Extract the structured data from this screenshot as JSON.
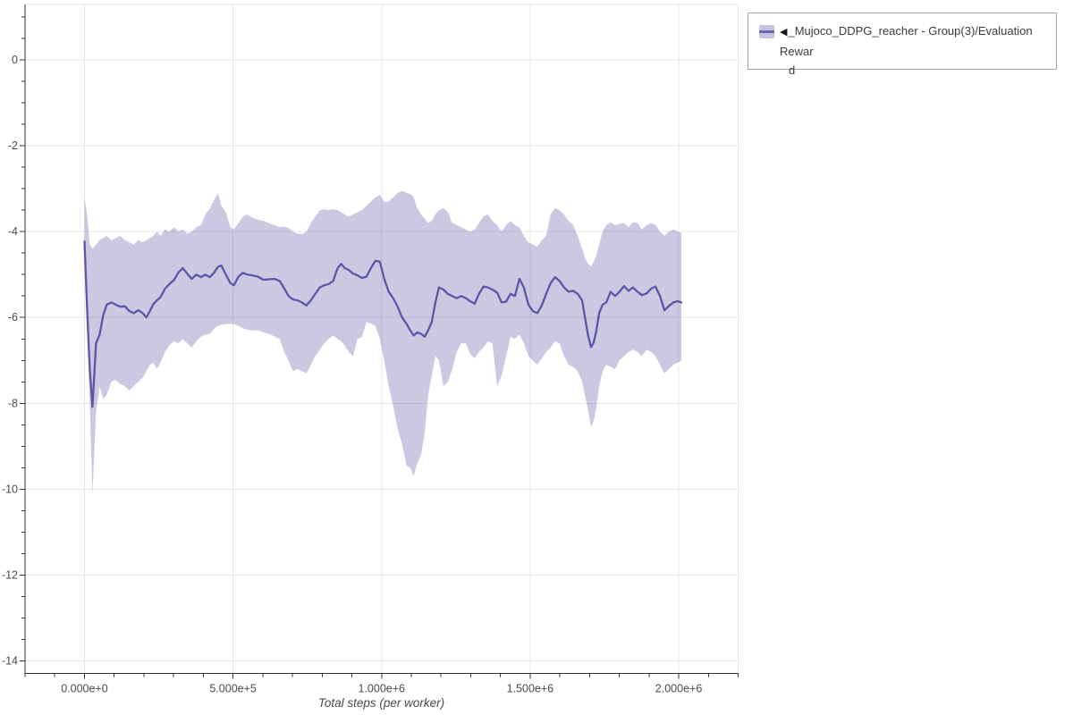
{
  "legend": {
    "collapse_icon": "◀",
    "label_full": "_Mujoco_DDPG_reacher - Group(3)/Evaluation Reward",
    "label_line1": "_Mujoco_DDPG_reacher - Group(3)/Evaluation Rewar",
    "label_line2": "d"
  },
  "colors": {
    "line": "#5e55a6",
    "band_fill": "#5e55a6",
    "grid": "#e7e7e7",
    "axis": "#333333",
    "tick_label": "#4a4a4a",
    "legend_border": "#a3a3a3"
  },
  "chart_data": {
    "type": "line",
    "title": "",
    "xlabel": "Total steps (per worker)",
    "ylabel": "",
    "grid": "major",
    "legend_position": "outside-top-right",
    "xlim": [
      -200000,
      2200000
    ],
    "ylim": [
      -14.29,
      1.29
    ],
    "x_major_ticks": [
      0,
      500000,
      1000000,
      1500000,
      2000000
    ],
    "x_major_tick_labels": [
      "0.000e+0",
      "5.000e+5",
      "1.000e+6",
      "1.500e+6",
      "2.000e+6"
    ],
    "x_minor_tick_step": 100000,
    "y_major_ticks": [
      0,
      -2,
      -4,
      -6,
      -8,
      -10,
      -12,
      -14
    ],
    "y_major_tick_labels": [
      "0",
      "-2",
      "-4",
      "-6",
      "-8",
      "-10",
      "-12",
      "-14"
    ],
    "y_minor_tick_step": 0.5,
    "series": [
      {
        "name": "_Mujoco_DDPG_reacher - Group(3)/Evaluation Reward",
        "line_color": "#5e55a6",
        "band_opacity": 0.32,
        "x": [
          0,
          9000,
          18000,
          27000,
          39000,
          51000,
          63000,
          75000,
          90000,
          105000,
          120000,
          136000,
          151000,
          166000,
          181000,
          196000,
          208000,
          220000,
          232000,
          244000,
          256000,
          271000,
          286000,
          301000,
          316000,
          331000,
          346000,
          361000,
          377000,
          392000,
          407000,
          422000,
          437000,
          449000,
          461000,
          476000,
          491000,
          503000,
          518000,
          533000,
          548000,
          566000,
          584000,
          602000,
          620000,
          639000,
          657000,
          672000,
          687000,
          702000,
          717000,
          732000,
          747000,
          762000,
          777000,
          792000,
          807000,
          822000,
          837000,
          852000,
          864000,
          876000,
          889000,
          904000,
          919000,
          934000,
          949000,
          964000,
          979000,
          994000,
          1009000,
          1024000,
          1039000,
          1054000,
          1069000,
          1084000,
          1096000,
          1108000,
          1120000,
          1133000,
          1145000,
          1157000,
          1169000,
          1181000,
          1193000,
          1208000,
          1223000,
          1238000,
          1253000,
          1268000,
          1283000,
          1298000,
          1313000,
          1328000,
          1343000,
          1358000,
          1373000,
          1389000,
          1404000,
          1419000,
          1434000,
          1449000,
          1464000,
          1479000,
          1494000,
          1509000,
          1524000,
          1539000,
          1554000,
          1569000,
          1584000,
          1599000,
          1614000,
          1629000,
          1645000,
          1660000,
          1675000,
          1687000,
          1696000,
          1705000,
          1714000,
          1723000,
          1732000,
          1744000,
          1756000,
          1771000,
          1786000,
          1801000,
          1816000,
          1831000,
          1846000,
          1861000,
          1876000,
          1892000,
          1907000,
          1922000,
          1937000,
          1952000,
          1967000,
          1982000,
          1997000,
          2009000
        ],
        "mean": [
          -4.23,
          -5.8,
          -7.2,
          -8.08,
          -6.6,
          -6.4,
          -5.95,
          -5.7,
          -5.65,
          -5.7,
          -5.75,
          -5.74,
          -5.85,
          -5.9,
          -5.83,
          -5.9,
          -6.0,
          -5.85,
          -5.69,
          -5.6,
          -5.53,
          -5.33,
          -5.22,
          -5.13,
          -4.95,
          -4.85,
          -4.98,
          -5.1,
          -5.0,
          -5.06,
          -5.0,
          -5.06,
          -4.95,
          -4.82,
          -4.79,
          -5.0,
          -5.2,
          -5.25,
          -5.05,
          -4.96,
          -5.0,
          -5.02,
          -5.05,
          -5.12,
          -5.11,
          -5.1,
          -5.15,
          -5.32,
          -5.5,
          -5.58,
          -5.6,
          -5.65,
          -5.72,
          -5.6,
          -5.45,
          -5.3,
          -5.25,
          -5.22,
          -5.15,
          -4.85,
          -4.75,
          -4.85,
          -4.89,
          -4.98,
          -5.02,
          -5.08,
          -5.05,
          -4.85,
          -4.68,
          -4.7,
          -5.1,
          -5.4,
          -5.55,
          -5.75,
          -6.0,
          -6.15,
          -6.3,
          -6.42,
          -6.35,
          -6.38,
          -6.45,
          -6.3,
          -6.1,
          -5.65,
          -5.3,
          -5.35,
          -5.45,
          -5.5,
          -5.55,
          -5.5,
          -5.55,
          -5.62,
          -5.68,
          -5.45,
          -5.28,
          -5.3,
          -5.35,
          -5.42,
          -5.65,
          -5.63,
          -5.45,
          -5.5,
          -5.1,
          -5.3,
          -5.7,
          -5.85,
          -5.9,
          -5.72,
          -5.45,
          -5.2,
          -5.06,
          -5.15,
          -5.3,
          -5.4,
          -5.38,
          -5.45,
          -5.6,
          -6.1,
          -6.45,
          -6.69,
          -6.58,
          -6.3,
          -5.9,
          -5.7,
          -5.65,
          -5.4,
          -5.5,
          -5.4,
          -5.27,
          -5.38,
          -5.3,
          -5.4,
          -5.48,
          -5.44,
          -5.33,
          -5.28,
          -5.5,
          -5.83,
          -5.73,
          -5.65,
          -5.62,
          -5.65
        ],
        "band_high": [
          -3.2,
          -3.6,
          -4.3,
          -4.4,
          -4.3,
          -4.2,
          -4.15,
          -4.1,
          -4.2,
          -4.15,
          -4.1,
          -4.2,
          -4.25,
          -4.3,
          -4.2,
          -4.25,
          -4.2,
          -4.15,
          -4.1,
          -4.0,
          -4.1,
          -3.95,
          -4.0,
          -3.9,
          -4.0,
          -3.95,
          -4.05,
          -4.0,
          -3.9,
          -3.85,
          -3.6,
          -3.46,
          -3.25,
          -3.1,
          -3.4,
          -3.55,
          -3.9,
          -3.95,
          -3.8,
          -3.65,
          -3.6,
          -3.68,
          -3.72,
          -3.75,
          -3.8,
          -3.85,
          -3.9,
          -3.88,
          -3.92,
          -4.0,
          -4.05,
          -4.06,
          -4.0,
          -3.8,
          -3.65,
          -3.5,
          -3.48,
          -3.5,
          -3.48,
          -3.5,
          -3.55,
          -3.6,
          -3.65,
          -3.6,
          -3.55,
          -3.5,
          -3.4,
          -3.3,
          -3.2,
          -3.15,
          -3.3,
          -3.3,
          -3.2,
          -3.1,
          -3.05,
          -3.1,
          -3.12,
          -3.2,
          -3.45,
          -3.6,
          -3.7,
          -3.8,
          -3.75,
          -3.6,
          -3.5,
          -3.45,
          -3.55,
          -3.8,
          -3.85,
          -3.9,
          -3.95,
          -4.0,
          -3.95,
          -3.8,
          -3.65,
          -3.6,
          -3.75,
          -3.85,
          -4.0,
          -3.85,
          -3.75,
          -3.85,
          -3.9,
          -4.1,
          -4.25,
          -4.3,
          -4.35,
          -4.2,
          -4.1,
          -3.6,
          -3.45,
          -3.5,
          -3.6,
          -3.75,
          -3.85,
          -4.1,
          -4.4,
          -4.65,
          -4.75,
          -4.81,
          -4.7,
          -4.55,
          -4.3,
          -4.0,
          -3.85,
          -3.78,
          -3.85,
          -3.82,
          -3.8,
          -3.9,
          -3.78,
          -3.8,
          -3.95,
          -3.85,
          -3.8,
          -3.85,
          -4.0,
          -4.1,
          -4.0,
          -3.95,
          -4.0,
          -4.02
        ],
        "band_low": [
          -4.6,
          -6.3,
          -8.0,
          -10.1,
          -8.2,
          -7.6,
          -7.9,
          -7.8,
          -7.5,
          -7.45,
          -7.55,
          -7.6,
          -7.7,
          -7.6,
          -7.5,
          -7.4,
          -7.25,
          -7.1,
          -7.05,
          -7.2,
          -7.05,
          -6.8,
          -6.65,
          -6.55,
          -6.6,
          -6.5,
          -6.6,
          -6.7,
          -6.55,
          -6.45,
          -6.4,
          -6.38,
          -6.25,
          -6.2,
          -6.17,
          -6.15,
          -6.15,
          -6.15,
          -6.2,
          -6.25,
          -6.28,
          -6.3,
          -6.3,
          -6.35,
          -6.38,
          -6.44,
          -6.5,
          -6.8,
          -7.0,
          -7.25,
          -7.2,
          -7.25,
          -7.3,
          -7.1,
          -6.9,
          -6.75,
          -6.6,
          -6.5,
          -6.42,
          -6.5,
          -6.55,
          -6.65,
          -6.8,
          -6.9,
          -6.5,
          -6.46,
          -6.1,
          -6.15,
          -6.2,
          -6.5,
          -7.0,
          -7.6,
          -8.05,
          -8.6,
          -8.95,
          -9.45,
          -9.5,
          -9.69,
          -9.4,
          -9.2,
          -8.7,
          -7.8,
          -7.35,
          -6.9,
          -7.0,
          -7.6,
          -7.5,
          -7.2,
          -6.8,
          -6.6,
          -6.6,
          -6.85,
          -6.95,
          -6.8,
          -6.7,
          -6.55,
          -6.6,
          -7.6,
          -7.35,
          -6.9,
          -6.45,
          -6.5,
          -6.4,
          -6.6,
          -6.9,
          -7.0,
          -7.1,
          -6.95,
          -6.8,
          -6.7,
          -6.55,
          -6.6,
          -6.9,
          -7.1,
          -7.15,
          -7.25,
          -7.5,
          -7.9,
          -8.2,
          -8.55,
          -8.4,
          -8.1,
          -7.6,
          -7.25,
          -7.1,
          -7.15,
          -7.2,
          -7.0,
          -6.9,
          -6.8,
          -6.75,
          -6.8,
          -6.9,
          -6.75,
          -6.8,
          -6.9,
          -7.1,
          -7.3,
          -7.2,
          -7.1,
          -7.05,
          -7.0
        ]
      }
    ]
  }
}
